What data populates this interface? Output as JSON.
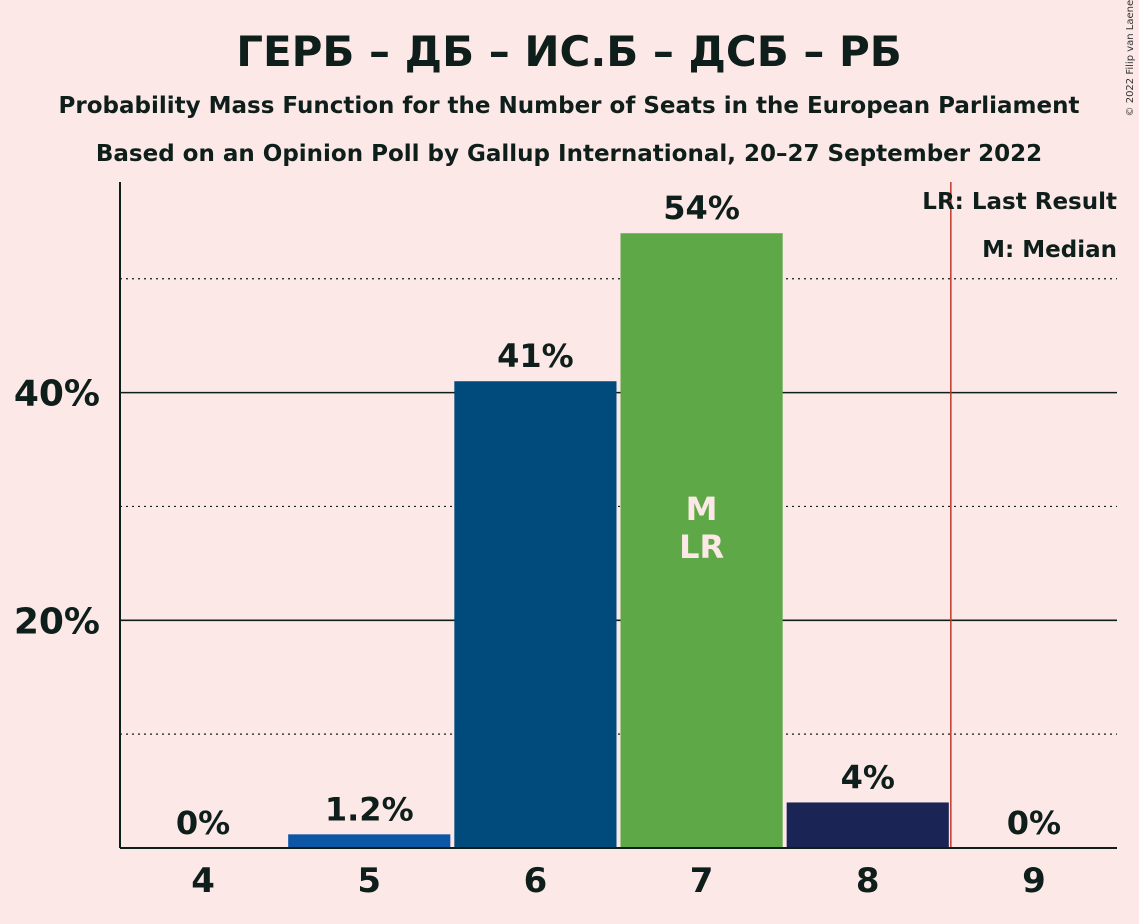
{
  "colors": {
    "background": "#FDE8E8",
    "text": "#0E1E1A",
    "last_result_line": "#C0392B",
    "bar_label_inside": "#FDE8E8"
  },
  "chart_data": {
    "type": "bar",
    "title": "ГЕРБ – ДБ – ИС.Б – ДСБ – РБ",
    "subtitle": "Probability Mass Function for the Number of Seats in the European Parliament",
    "subtitle2": "Based on an Opinion Poll by Gallup International, 20–27 September 2022",
    "categories": [
      "4",
      "5",
      "6",
      "7",
      "8",
      "9"
    ],
    "values": [
      0,
      1.2,
      41,
      54,
      4,
      0
    ],
    "value_labels": [
      "0%",
      "1.2%",
      "41%",
      "54%",
      "4%",
      "0%"
    ],
    "bar_colors": [
      "#0D56A5",
      "#0D56A5",
      "#004A7C",
      "#5FA847",
      "#1A2455",
      "#1A2455"
    ],
    "ylim": [
      0,
      58.5
    ],
    "y_major_ticks": [
      20,
      40
    ],
    "y_tick_labels": [
      "20%",
      "40%"
    ],
    "y_minor_gridlines": [
      10,
      30,
      50
    ],
    "last_result_after_category": "8",
    "inside_labels": {
      "category": "7",
      "lines": [
        "M",
        "LR"
      ]
    },
    "legend": [
      "LR: Last Result",
      "M: Median"
    ],
    "legend_position": "top-right",
    "copyright": "© 2022 Filip van Laenen"
  }
}
